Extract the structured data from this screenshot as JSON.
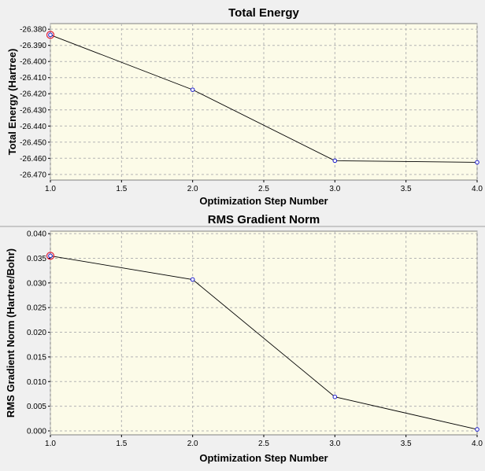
{
  "chart_data": [
    {
      "type": "line",
      "title": "Total Energy",
      "xlabel": "Optimization Step Number",
      "ylabel": "Total Energy (Hartree)",
      "x": [
        1,
        2,
        3,
        4
      ],
      "series": [
        {
          "values": [
            -26.3835,
            -26.4175,
            -26.4615,
            -26.4625
          ]
        }
      ],
      "xlim": [
        1.0,
        4.0
      ],
      "ylim": [
        -26.4735,
        -26.3765
      ],
      "xticks": [
        "1.0",
        "1.5",
        "2.0",
        "2.5",
        "3.0",
        "3.5",
        "4.0"
      ],
      "yticks": [
        "-26.380",
        "-26.390",
        "-26.400",
        "-26.410",
        "-26.420",
        "-26.430",
        "-26.440",
        "-26.450",
        "-26.460",
        "-26.470"
      ],
      "selected_point_index": 0,
      "grid": true
    },
    {
      "type": "line",
      "title": "RMS Gradient Norm",
      "xlabel": "Optimization Step Number",
      "ylabel": "RMS Gradient Norm (Hartree/Bohr)",
      "x": [
        1,
        2,
        3,
        4
      ],
      "series": [
        {
          "values": [
            0.0355,
            0.0307,
            0.0069,
            0.0003
          ]
        }
      ],
      "xlim": [
        1.0,
        4.0
      ],
      "ylim": [
        -0.0008,
        0.0405
      ],
      "xticks": [
        "1.0",
        "1.5",
        "2.0",
        "2.5",
        "3.0",
        "3.5",
        "4.0"
      ],
      "yticks": [
        "0.040",
        "0.035",
        "0.030",
        "0.025",
        "0.020",
        "0.015",
        "0.010",
        "0.005",
        "0.000"
      ],
      "selected_point_index": 0,
      "grid": true
    }
  ],
  "colors": {
    "plot_background": "#fcfbe8",
    "window_background": "#f0f0f0",
    "point_stroke": "#1a1acc",
    "selected_point": "#e0203c",
    "line": "#000000"
  }
}
